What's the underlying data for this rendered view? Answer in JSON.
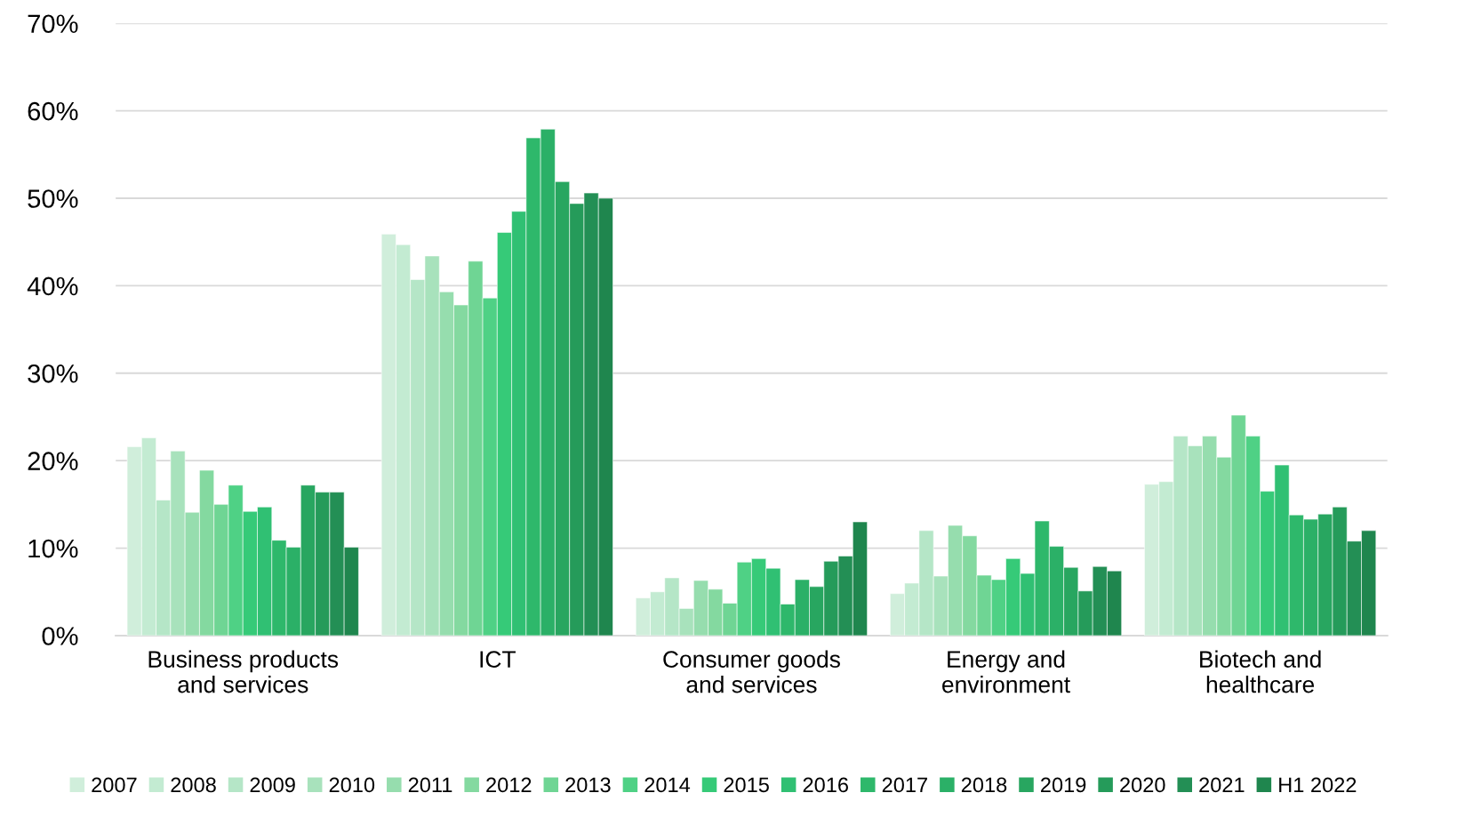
{
  "chart_data": {
    "type": "bar",
    "categories": [
      "Business products\nand services",
      "ICT",
      "Consumer goods\nand services",
      "Energy and\nenvironment",
      "Biotech and\nhealthcare"
    ],
    "ylim": [
      0,
      70
    ],
    "yticks": [
      {
        "value": 0,
        "label": "0%"
      },
      {
        "value": 10,
        "label": "10%"
      },
      {
        "value": 20,
        "label": "20%"
      },
      {
        "value": 30,
        "label": "30%"
      },
      {
        "value": 40,
        "label": "40%"
      },
      {
        "value": 50,
        "label": "50%"
      },
      {
        "value": 60,
        "label": "60%"
      },
      {
        "value": 70,
        "label": "70%"
      }
    ],
    "grid": "y",
    "legend": "bottom",
    "series": [
      {
        "name": "2007",
        "color": "#d0eedb",
        "values": [
          21.6,
          45.9,
          4.3,
          4.8,
          17.3
        ]
      },
      {
        "name": "2008",
        "color": "#c3ebd2",
        "values": [
          22.6,
          44.7,
          5.0,
          6.0,
          17.6
        ]
      },
      {
        "name": "2009",
        "color": "#b5e6c7",
        "values": [
          15.5,
          40.7,
          6.6,
          12.0,
          22.8
        ]
      },
      {
        "name": "2010",
        "color": "#a8e2bc",
        "values": [
          21.1,
          43.4,
          3.1,
          6.8,
          21.7
        ]
      },
      {
        "name": "2011",
        "color": "#96ddae",
        "values": [
          14.1,
          39.3,
          6.3,
          12.6,
          22.8
        ]
      },
      {
        "name": "2012",
        "color": "#84d9a0",
        "values": [
          18.9,
          37.8,
          5.3,
          11.4,
          20.4
        ]
      },
      {
        "name": "2013",
        "color": "#6fd594",
        "values": [
          15.0,
          42.8,
          3.7,
          6.9,
          25.2
        ]
      },
      {
        "name": "2014",
        "color": "#4fd185",
        "values": [
          17.2,
          38.6,
          8.4,
          6.4,
          22.8
        ]
      },
      {
        "name": "2015",
        "color": "#36ca78",
        "values": [
          14.2,
          46.1,
          8.8,
          8.8,
          16.5
        ]
      },
      {
        "name": "2016",
        "color": "#30c073",
        "values": [
          14.7,
          48.5,
          7.7,
          7.1,
          19.5
        ]
      },
      {
        "name": "2017",
        "color": "#2eb86b",
        "values": [
          10.9,
          56.9,
          3.6,
          13.1,
          13.8
        ]
      },
      {
        "name": "2018",
        "color": "#2bb067",
        "values": [
          10.1,
          57.9,
          6.4,
          10.2,
          13.3
        ]
      },
      {
        "name": "2019",
        "color": "#28a660",
        "values": [
          17.2,
          51.9,
          5.6,
          7.8,
          13.9
        ]
      },
      {
        "name": "2020",
        "color": "#259b5a",
        "values": [
          16.4,
          49.4,
          8.5,
          5.1,
          14.7
        ]
      },
      {
        "name": "2021",
        "color": "#238f55",
        "values": [
          16.4,
          50.6,
          9.1,
          7.9,
          10.8
        ]
      },
      {
        "name": "H1 2022",
        "color": "#1f864e",
        "values": [
          10.1,
          50.0,
          13.0,
          7.4,
          12.0
        ]
      }
    ]
  }
}
